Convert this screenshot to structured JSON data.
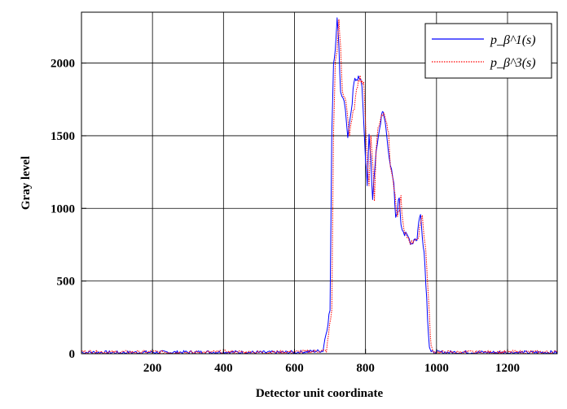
{
  "chart_data": {
    "type": "line",
    "xlabel": "Detector unit coordinate",
    "ylabel": "Gray level",
    "xlim": [
      0,
      1340
    ],
    "ylim": [
      0,
      2350
    ],
    "xticks": [
      200,
      400,
      600,
      800,
      1000,
      1200
    ],
    "yticks": [
      0,
      500,
      1000,
      1500,
      2000
    ],
    "grid": true,
    "legend_position": "top-right",
    "series": [
      {
        "name": "p_β^1(s)",
        "color": "#0000ff",
        "style": "solid",
        "x": [
          0,
          100,
          200,
          300,
          400,
          500,
          600,
          680,
          700,
          705,
          710,
          715,
          720,
          725,
          730,
          740,
          750,
          760,
          765,
          770,
          775,
          780,
          790,
          800,
          805,
          810,
          815,
          820,
          830,
          840,
          845,
          850,
          855,
          860,
          870,
          880,
          885,
          890,
          895,
          900,
          910,
          920,
          930,
          940,
          945,
          950,
          955,
          960,
          965,
          970,
          975,
          980,
          985,
          990,
          1000,
          1100,
          1200,
          1340
        ],
        "y": [
          10,
          8,
          10,
          10,
          12,
          8,
          10,
          20,
          300,
          1500,
          2000,
          2100,
          2330,
          2100,
          1800,
          1750,
          1500,
          1650,
          1800,
          1900,
          1900,
          1900,
          1850,
          1350,
          1150,
          1500,
          1350,
          1050,
          1400,
          1550,
          1650,
          1650,
          1600,
          1500,
          1300,
          1150,
          920,
          1000,
          1080,
          900,
          820,
          800,
          760,
          800,
          780,
          920,
          950,
          820,
          700,
          500,
          250,
          50,
          10,
          10,
          10,
          10,
          8,
          10
        ]
      },
      {
        "name": "p_β^3(s)",
        "color": "#ff0000",
        "style": "dotted",
        "x": [
          0,
          100,
          200,
          300,
          400,
          500,
          600,
          690,
          705,
          710,
          715,
          720,
          725,
          730,
          735,
          745,
          755,
          765,
          775,
          780,
          785,
          790,
          795,
          805,
          810,
          815,
          820,
          825,
          830,
          835,
          845,
          855,
          860,
          865,
          870,
          880,
          890,
          895,
          900,
          905,
          910,
          920,
          930,
          940,
          950,
          955,
          960,
          965,
          970,
          975,
          980,
          985,
          990,
          995,
          1005,
          1100,
          1200,
          1340
        ],
        "y": [
          15,
          10,
          12,
          8,
          12,
          10,
          12,
          20,
          300,
          1500,
          2000,
          2100,
          2280,
          2100,
          1800,
          1750,
          1500,
          1650,
          1800,
          1900,
          1900,
          1880,
          1850,
          1350,
          1150,
          1500,
          1350,
          1050,
          1400,
          1550,
          1650,
          1650,
          1600,
          1500,
          1300,
          1150,
          920,
          1000,
          1080,
          900,
          820,
          800,
          760,
          800,
          780,
          920,
          950,
          820,
          700,
          500,
          250,
          50,
          15,
          10,
          10,
          10,
          12,
          10
        ]
      }
    ]
  }
}
